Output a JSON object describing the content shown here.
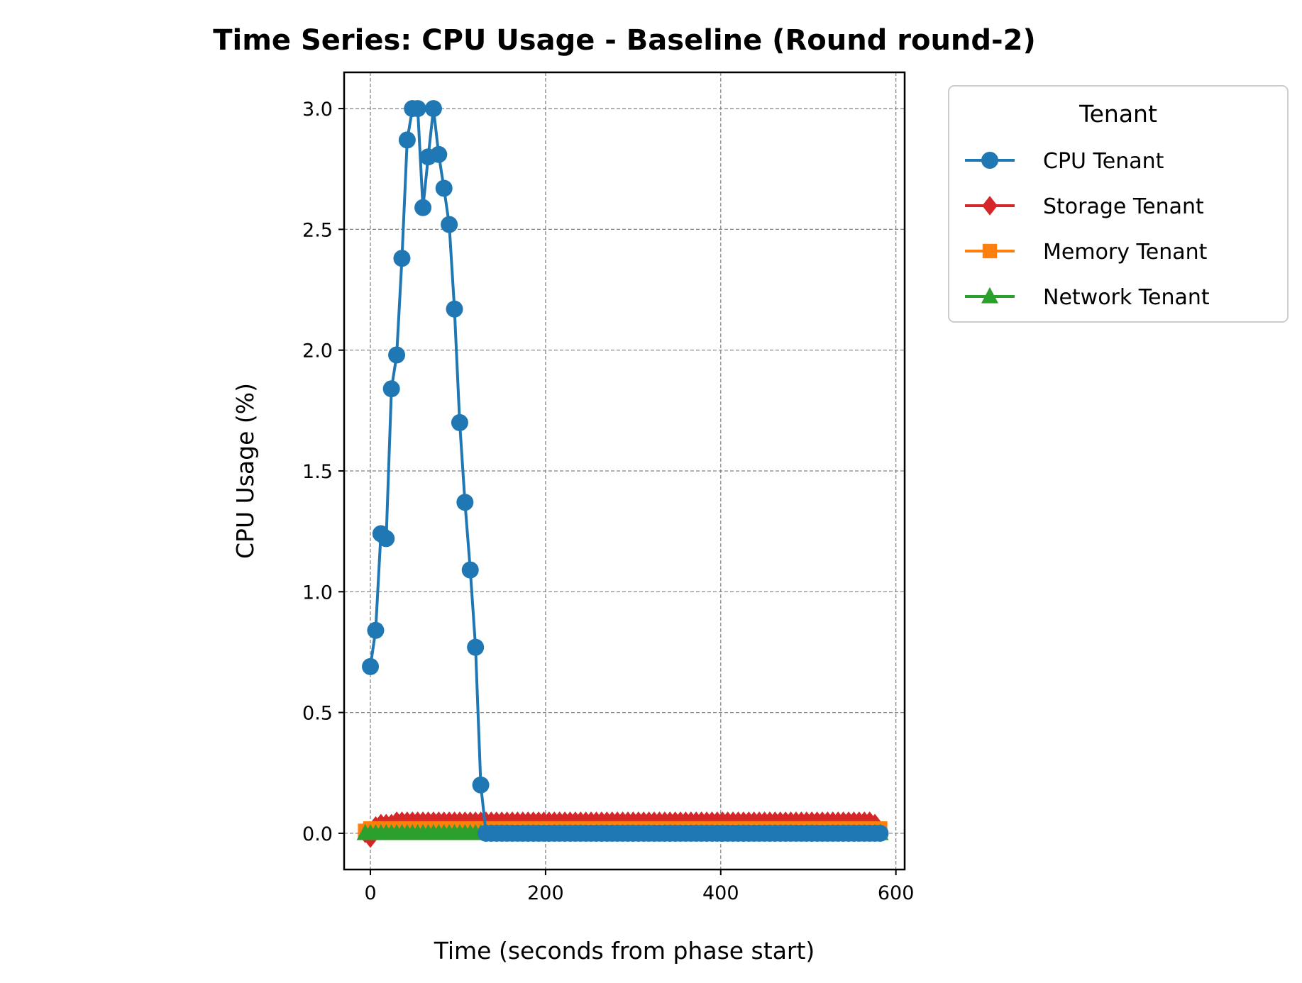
{
  "chart_data": {
    "type": "line",
    "title": "Time Series: CPU Usage - Baseline (Round round-2)",
    "xlabel": "Time (seconds from phase start)",
    "ylabel": "CPU Usage (%)",
    "xlim": [
      -30,
      610
    ],
    "ylim": [
      -0.15,
      3.15
    ],
    "xticks": [
      0,
      200,
      400,
      600
    ],
    "yticks": [
      0.0,
      0.5,
      1.0,
      1.5,
      2.0,
      2.5,
      3.0
    ],
    "xtick_labels": [
      "0",
      "200",
      "400",
      "600"
    ],
    "ytick_labels": [
      "0.0",
      "0.5",
      "1.0",
      "1.5",
      "2.0",
      "2.5",
      "3.0"
    ],
    "grid": true,
    "legend": {
      "title": "Tenant",
      "placement": "outside-top-right"
    },
    "series": [
      {
        "name": "CPU Tenant",
        "color": "#1f77b4",
        "marker": "circle",
        "x": [
          0,
          6,
          12,
          18,
          24,
          30,
          36,
          42,
          48,
          54,
          60,
          66,
          72,
          78,
          84,
          90,
          96,
          102,
          108,
          114,
          120,
          126,
          132,
          138,
          144,
          150,
          156,
          162,
          168,
          174,
          180,
          186,
          192,
          198,
          204,
          210,
          216,
          222,
          228,
          234,
          240,
          246,
          252,
          258,
          264,
          270,
          276,
          282,
          288,
          294,
          300,
          306,
          312,
          318,
          324,
          330,
          336,
          342,
          348,
          354,
          360,
          366,
          372,
          378,
          384,
          390,
          396,
          402,
          408,
          414,
          420,
          426,
          432,
          438,
          444,
          450,
          456,
          462,
          468,
          474,
          480,
          486,
          492,
          498,
          504,
          510,
          516,
          522,
          528,
          534,
          540,
          546,
          552,
          558,
          564,
          570,
          576,
          582
        ],
        "values": [
          0.69,
          0.84,
          1.24,
          1.22,
          1.84,
          1.98,
          2.38,
          2.87,
          3.0,
          3.0,
          2.59,
          2.8,
          3.0,
          2.81,
          2.67,
          2.52,
          2.17,
          1.7,
          1.37,
          1.09,
          0.77,
          0.2,
          0.0,
          0.0,
          0.0,
          0.0,
          0.0,
          0.0,
          0.0,
          0.0,
          0.0,
          0.0,
          0.0,
          0.0,
          0.0,
          0.0,
          0.0,
          0.0,
          0.0,
          0.0,
          0.0,
          0.0,
          0.0,
          0.0,
          0.0,
          0.0,
          0.0,
          0.0,
          0.0,
          0.0,
          0.0,
          0.0,
          0.0,
          0.0,
          0.0,
          0.0,
          0.0,
          0.0,
          0.0,
          0.0,
          0.0,
          0.0,
          0.0,
          0.0,
          0.0,
          0.0,
          0.0,
          0.0,
          0.0,
          0.0,
          0.0,
          0.0,
          0.0,
          0.0,
          0.0,
          0.0,
          0.0,
          0.0,
          0.0,
          0.0,
          0.0,
          0.0,
          0.0,
          0.0,
          0.0,
          0.0,
          0.0,
          0.0,
          0.0,
          0.0,
          0.0,
          0.0,
          0.0,
          0.0,
          0.0,
          0.0,
          0.0,
          0.0
        ]
      },
      {
        "name": "Storage Tenant",
        "color": "#d62728",
        "marker": "diamond",
        "x": [
          -6,
          0,
          6,
          12,
          18,
          24,
          30,
          36,
          42,
          48,
          54,
          60,
          66,
          72,
          78,
          84,
          90,
          96,
          102,
          108,
          114,
          120,
          126,
          132,
          138,
          144,
          150,
          156,
          162,
          168,
          174,
          180,
          186,
          192,
          198,
          204,
          210,
          216,
          222,
          228,
          234,
          240,
          246,
          252,
          258,
          264,
          270,
          276,
          282,
          288,
          294,
          300,
          306,
          312,
          318,
          324,
          330,
          336,
          342,
          348,
          354,
          360,
          366,
          372,
          378,
          384,
          390,
          396,
          402,
          408,
          414,
          420,
          426,
          432,
          438,
          444,
          450,
          456,
          462,
          468,
          474,
          480,
          486,
          492,
          498,
          504,
          510,
          516,
          522,
          528,
          534,
          540,
          546,
          552,
          558,
          564,
          570,
          576,
          582
        ],
        "values": [
          0.0,
          -0.02,
          0.03,
          0.04,
          0.04,
          0.04,
          0.05,
          0.05,
          0.05,
          0.05,
          0.05,
          0.05,
          0.05,
          0.05,
          0.05,
          0.05,
          0.05,
          0.05,
          0.05,
          0.05,
          0.05,
          0.05,
          0.05,
          0.05,
          0.05,
          0.05,
          0.05,
          0.05,
          0.05,
          0.05,
          0.05,
          0.05,
          0.05,
          0.05,
          0.05,
          0.05,
          0.05,
          0.05,
          0.05,
          0.05,
          0.05,
          0.05,
          0.05,
          0.05,
          0.05,
          0.05,
          0.05,
          0.05,
          0.05,
          0.05,
          0.05,
          0.05,
          0.05,
          0.05,
          0.05,
          0.05,
          0.05,
          0.05,
          0.05,
          0.05,
          0.05,
          0.05,
          0.05,
          0.05,
          0.05,
          0.05,
          0.05,
          0.05,
          0.05,
          0.05,
          0.05,
          0.05,
          0.05,
          0.05,
          0.05,
          0.05,
          0.05,
          0.05,
          0.05,
          0.05,
          0.05,
          0.05,
          0.05,
          0.05,
          0.05,
          0.05,
          0.05,
          0.05,
          0.05,
          0.05,
          0.05,
          0.05,
          0.05,
          0.05,
          0.05,
          0.05,
          0.05,
          0.04,
          0.01
        ]
      },
      {
        "name": "Memory Tenant",
        "color": "#ff7f0e",
        "marker": "square",
        "x": [
          -6,
          0,
          6,
          12,
          18,
          24,
          30,
          36,
          42,
          48,
          54,
          60,
          66,
          72,
          78,
          84,
          90,
          96,
          102,
          108,
          114,
          120,
          126,
          132,
          138,
          144,
          150,
          156,
          162,
          168,
          174,
          180,
          186,
          192,
          198,
          204,
          210,
          216,
          222,
          228,
          234,
          240,
          246,
          252,
          258,
          264,
          270,
          276,
          282,
          288,
          294,
          300,
          306,
          312,
          318,
          324,
          330,
          336,
          342,
          348,
          354,
          360,
          366,
          372,
          378,
          384,
          390,
          396,
          402,
          408,
          414,
          420,
          426,
          432,
          438,
          444,
          450,
          456,
          462,
          468,
          474,
          480,
          486,
          492,
          498,
          504,
          510,
          516,
          522,
          528,
          534,
          540,
          546,
          552,
          558,
          564,
          570,
          576,
          582
        ],
        "values": [
          0.01,
          0.02,
          0.02,
          0.02,
          0.02,
          0.02,
          0.02,
          0.02,
          0.02,
          0.02,
          0.02,
          0.02,
          0.02,
          0.02,
          0.02,
          0.02,
          0.02,
          0.02,
          0.02,
          0.02,
          0.02,
          0.02,
          0.02,
          0.02,
          0.02,
          0.02,
          0.02,
          0.02,
          0.02,
          0.02,
          0.02,
          0.02,
          0.02,
          0.02,
          0.02,
          0.02,
          0.02,
          0.02,
          0.02,
          0.02,
          0.02,
          0.02,
          0.02,
          0.02,
          0.02,
          0.02,
          0.02,
          0.02,
          0.02,
          0.02,
          0.02,
          0.02,
          0.02,
          0.02,
          0.02,
          0.02,
          0.02,
          0.02,
          0.02,
          0.02,
          0.02,
          0.02,
          0.02,
          0.02,
          0.02,
          0.02,
          0.02,
          0.02,
          0.02,
          0.02,
          0.02,
          0.02,
          0.02,
          0.02,
          0.02,
          0.02,
          0.02,
          0.02,
          0.02,
          0.02,
          0.02,
          0.02,
          0.02,
          0.02,
          0.02,
          0.02,
          0.02,
          0.02,
          0.02,
          0.02,
          0.02,
          0.02,
          0.02,
          0.02,
          0.02,
          0.02,
          0.02,
          0.02,
          0.02
        ]
      },
      {
        "name": "Network Tenant",
        "color": "#2ca02c",
        "marker": "triangle",
        "x": [
          -6,
          0,
          6,
          12,
          18,
          24,
          30,
          36,
          42,
          48,
          54,
          60,
          66,
          72,
          78,
          84,
          90,
          96,
          102,
          108,
          114,
          120,
          126,
          132,
          138,
          144,
          150,
          156,
          162,
          168,
          174,
          180,
          186,
          192,
          198,
          204,
          210,
          216,
          222,
          228,
          234,
          240,
          246,
          252,
          258,
          264,
          270,
          276,
          282,
          288,
          294,
          300,
          306,
          312,
          318,
          324,
          330,
          336,
          342,
          348,
          354,
          360,
          366,
          372,
          378,
          384,
          390,
          396,
          402,
          408,
          414,
          420,
          426,
          432,
          438,
          444,
          450,
          456,
          462,
          468,
          474,
          480,
          486,
          492,
          498,
          504,
          510,
          516,
          522,
          528,
          534,
          540,
          546,
          552,
          558,
          564,
          570,
          576,
          582
        ],
        "values": [
          0.0,
          0.0,
          0.0,
          0.0,
          0.0,
          0.0,
          0.0,
          0.0,
          0.0,
          0.0,
          0.0,
          0.0,
          0.0,
          0.0,
          0.0,
          0.0,
          0.0,
          0.0,
          0.0,
          0.0,
          0.0,
          0.0,
          0.0,
          0.0,
          0.0,
          0.0,
          0.0,
          0.0,
          0.0,
          0.0,
          0.0,
          0.0,
          0.0,
          0.0,
          0.0,
          0.0,
          0.0,
          0.0,
          0.0,
          0.0,
          0.0,
          0.0,
          0.0,
          0.0,
          0.0,
          0.0,
          0.0,
          0.0,
          0.0,
          0.0,
          0.0,
          0.0,
          0.0,
          0.0,
          0.0,
          0.0,
          0.0,
          0.0,
          0.0,
          0.0,
          0.0,
          0.0,
          0.0,
          0.0,
          0.0,
          0.0,
          0.0,
          0.0,
          0.0,
          0.0,
          0.0,
          0.0,
          0.0,
          0.0,
          0.0,
          0.0,
          0.0,
          0.0,
          0.0,
          0.0,
          0.0,
          0.0,
          0.0,
          0.0,
          0.0,
          0.0,
          0.0,
          0.0,
          0.0,
          0.0,
          0.0,
          0.0,
          0.0,
          0.0,
          0.0,
          0.0,
          0.0,
          0.0,
          0.0
        ]
      }
    ]
  }
}
